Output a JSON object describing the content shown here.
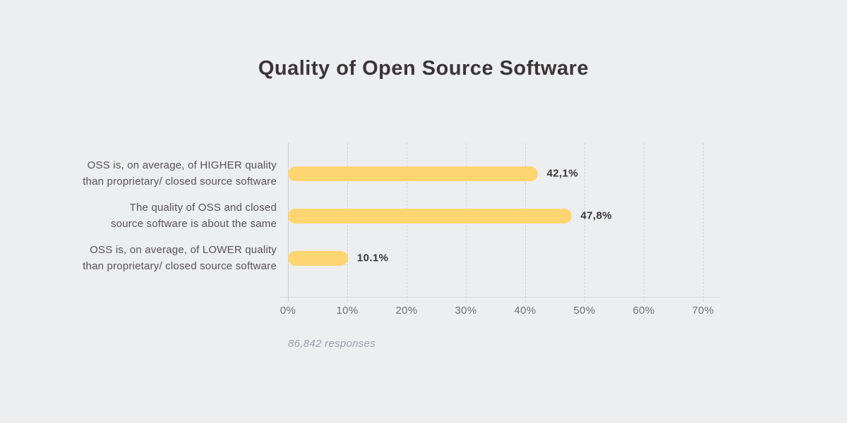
{
  "page": {
    "background_color": "#EDEEF0"
  },
  "chart_data": {
    "type": "bar",
    "orientation": "horizontal",
    "title": "Quality of Open Source Software",
    "categories": [
      "OSS is, on average, of HIGHER quality\nthan proprietary/ closed source software",
      "The quality of OSS and closed\nsource software is about the same",
      "OSS is, on average, of LOWER quality\nthan proprietary/ closed source software"
    ],
    "values": [
      42.1,
      47.8,
      10.1
    ],
    "value_labels": [
      "42,1%",
      "47,8%",
      "10.1%"
    ],
    "x_ticks": [
      "0%",
      "10%",
      "20%",
      "30%",
      "40%",
      "50%",
      "60%",
      "70%"
    ],
    "xlim": [
      0,
      70
    ],
    "xlabel": "",
    "ylabel": "",
    "grid": "vertical-dashed",
    "legend": "none",
    "note": "86,842 responses",
    "colors": {
      "bar": "#FFD572",
      "title": "#3A3536",
      "category_label": "#575259",
      "value_label": "#3A3536",
      "tick_label": "#717277",
      "note": "#9CA1A9",
      "gridline": "#D3D4D8",
      "axis_line": "#CDCED3",
      "baseline": "#D8D9DC"
    }
  }
}
